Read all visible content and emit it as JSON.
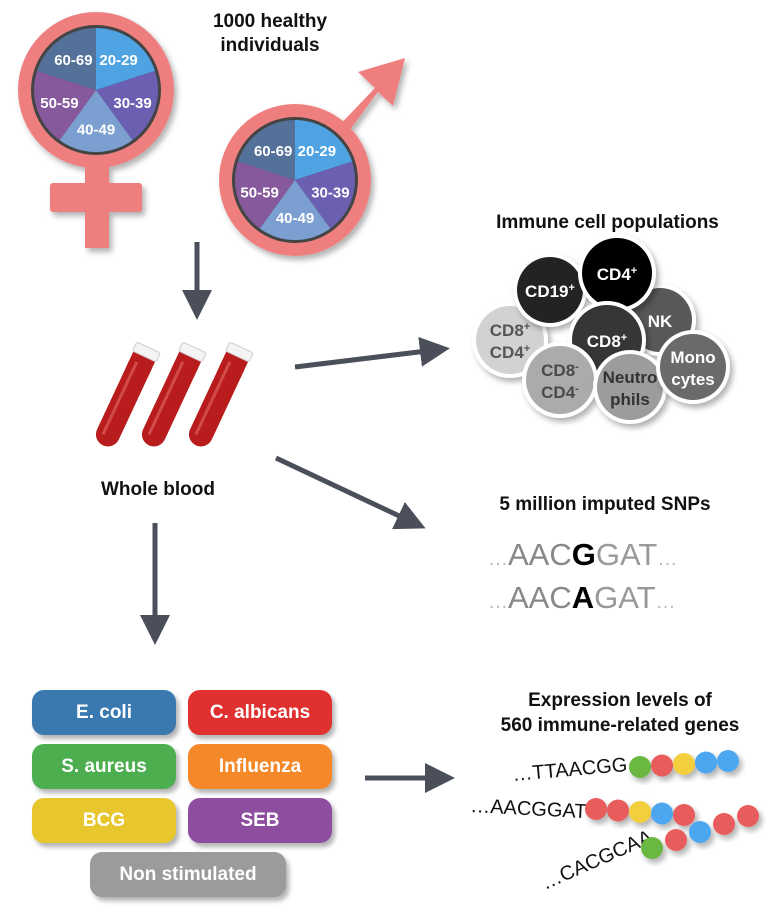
{
  "cohort": {
    "title_line1": "1000 healthy",
    "title_line2": "individuals",
    "age_groups": [
      {
        "label": "20-29",
        "color": "#4fa3e2"
      },
      {
        "label": "30-39",
        "color": "#6a5fb0"
      },
      {
        "label": "40-49",
        "color": "#7b9fd0"
      },
      {
        "label": "50-59",
        "color": "#86589c"
      },
      {
        "label": "60-69",
        "color": "#537199"
      }
    ],
    "symbol_color": "#ef7f7f",
    "female_icon": "female-symbol-icon",
    "male_icon": "male-symbol-icon"
  },
  "blood": {
    "label": "Whole blood",
    "icon": "blood-tube-icon",
    "color": "#b81c1c"
  },
  "immune": {
    "title": "Immune cell populations",
    "cells": [
      {
        "l1": "CD8",
        "s1": "+",
        "l2": "CD4",
        "s2": "+",
        "fill": "#d2d2d2",
        "text": "#555555"
      },
      {
        "l1": "CD19",
        "s1": "+",
        "fill": "#232323",
        "text": "#ffffff"
      },
      {
        "l1": "NK",
        "fill": "#585858",
        "text": "#ffffff"
      },
      {
        "l1": "CD4",
        "s1": "+",
        "fill": "#000000",
        "text": "#ffffff"
      },
      {
        "l1": "CD8",
        "s1": "+",
        "fill": "#363636",
        "text": "#ffffff"
      },
      {
        "l1": "CD8",
        "s1": "-",
        "l2": "CD4",
        "s2": "-",
        "fill": "#ababab",
        "text": "#4a4a4a"
      },
      {
        "l1": "Neutro",
        "l2": "phils",
        "fill": "#9c9c9c",
        "text": "#333333"
      },
      {
        "l1": "Mono",
        "l2": "cytes",
        "fill": "#6a6a6a",
        "text": "#ffffff"
      }
    ]
  },
  "snps": {
    "title": "5 million imputed SNPs",
    "seq1": {
      "dots_left": "…",
      "before": "AAC",
      "variant": "G",
      "after": "GAT",
      "dots_right": "…"
    },
    "seq2": {
      "dots_left": "…",
      "before": "AAC",
      "variant": "A",
      "after": "GAT",
      "dots_right": "…"
    }
  },
  "expression": {
    "title_line1": "Expression levels of",
    "title_line2": "560 immune-related genes",
    "bead_colors": {
      "green": "#6bb843",
      "red": "#e85c5c",
      "yellow": "#f3cf3c",
      "blue": "#4ea6f0"
    },
    "rows": [
      {
        "seq": "…TTAACGG",
        "beads": [
          "green",
          "red",
          "yellow",
          "blue",
          "blue"
        ]
      },
      {
        "seq": "…AACGGAT",
        "beads": [
          "red",
          "red",
          "yellow",
          "blue",
          "red"
        ]
      },
      {
        "seq": "…CACGCAA",
        "beads": [
          "green",
          "red",
          "blue",
          "red",
          "red"
        ]
      }
    ]
  },
  "stimuli": [
    {
      "label": "E. coli",
      "color": "#3a78b0"
    },
    {
      "label": "C. albicans",
      "color": "#e0302f"
    },
    {
      "label": "S. aureus",
      "color": "#4cae4f"
    },
    {
      "label": "Influenza",
      "color": "#f5892a"
    },
    {
      "label": "BCG",
      "color": "#e8c72e"
    },
    {
      "label": "SEB",
      "color": "#8e4ea0"
    },
    {
      "label": "Non stimulated",
      "color": "#9b9b9b"
    }
  ],
  "arrow_color": "#4a4f5a"
}
